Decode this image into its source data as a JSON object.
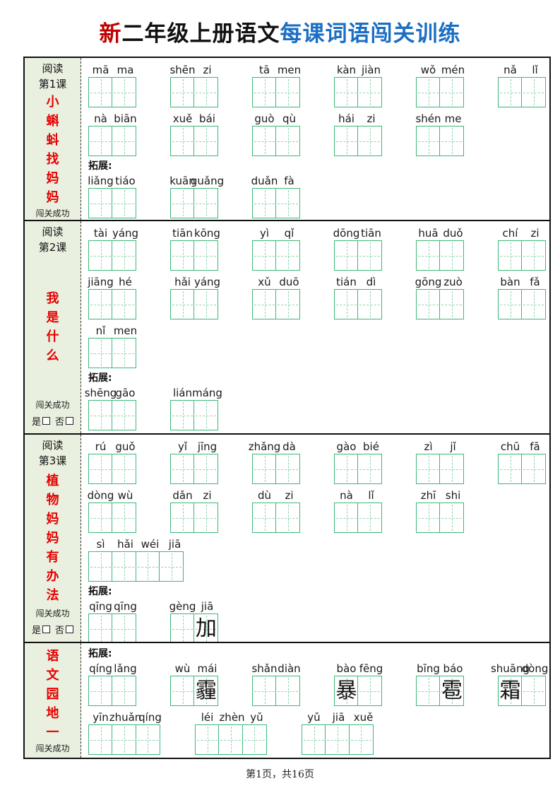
{
  "title": {
    "prefix": "新",
    "middle": "二年级上册语文",
    "suffix": "每课词语闯关训练"
  },
  "labels": {
    "expand": "拓展:",
    "success": "闯关成功",
    "yes": "是",
    "no": "否"
  },
  "colors": {
    "box_green": "#3cb878",
    "box_green_light": "#8fd4ae",
    "sidebar_bg": "#e9f0df",
    "title_red": "#c00000",
    "title_blue": "#1b6ec2",
    "lesson_red": "#e60000"
  },
  "sections": [
    {
      "sidebar": {
        "reading": "阅读",
        "lesson": "第1课",
        "title": "小蝌蚪找妈妈"
      },
      "blocks": [
        {
          "type": "words",
          "words": [
            {
              "pinyin": [
                "mā",
                "ma"
              ]
            },
            {
              "pinyin": [
                "shēn",
                "zi"
              ]
            },
            {
              "pinyin": [
                "tā",
                "men"
              ]
            },
            {
              "pinyin": [
                "kàn",
                "jiàn"
              ]
            },
            {
              "pinyin": [
                "wǒ",
                "mén"
              ]
            },
            {
              "pinyin": [
                "nǎ",
                "lǐ"
              ]
            }
          ]
        },
        {
          "type": "words",
          "words": [
            {
              "pinyin": [
                "nà",
                "biān"
              ]
            },
            {
              "pinyin": [
                "xuě",
                "bái"
              ]
            },
            {
              "pinyin": [
                "guò",
                "qù"
              ]
            },
            {
              "pinyin": [
                "hái",
                "zi"
              ]
            },
            {
              "pinyin": [
                "shén",
                "me"
              ]
            }
          ]
        },
        {
          "type": "expand"
        },
        {
          "type": "words",
          "words": [
            {
              "pinyin": [
                "liǎng",
                "tiáo"
              ]
            },
            {
              "pinyin": [
                "kuān",
                "guǎng"
              ]
            },
            {
              "pinyin": [
                "duǎn",
                "fà"
              ]
            }
          ]
        }
      ]
    },
    {
      "sidebar": {
        "reading": "阅读",
        "lesson": "第2课",
        "title": "我是什么"
      },
      "blocks": [
        {
          "type": "words",
          "words": [
            {
              "pinyin": [
                "tài",
                "yáng"
              ]
            },
            {
              "pinyin": [
                "tiān",
                "kōng"
              ]
            },
            {
              "pinyin": [
                "yì",
                "qǐ"
              ]
            },
            {
              "pinyin": [
                "dōng",
                "tiān"
              ]
            },
            {
              "pinyin": [
                "huā",
                "duǒ"
              ]
            },
            {
              "pinyin": [
                "chí",
                "zi"
              ]
            }
          ]
        },
        {
          "type": "words",
          "words": [
            {
              "pinyin": [
                "jiāng",
                "hé"
              ]
            },
            {
              "pinyin": [
                "hǎi",
                "yáng"
              ]
            },
            {
              "pinyin": [
                "xǔ",
                "duō"
              ]
            },
            {
              "pinyin": [
                "tián",
                "dì"
              ]
            },
            {
              "pinyin": [
                "gōng",
                "zuò"
              ]
            },
            {
              "pinyin": [
                "bàn",
                "fǎ"
              ]
            }
          ]
        },
        {
          "type": "words",
          "words": [
            {
              "pinyin": [
                "nǐ",
                "men"
              ]
            }
          ]
        },
        {
          "type": "expand"
        },
        {
          "type": "words",
          "words": [
            {
              "pinyin": [
                "shēng",
                "gāo"
              ]
            },
            {
              "pinyin": [
                "lián",
                "máng"
              ]
            }
          ]
        }
      ]
    },
    {
      "sidebar": {
        "reading": "阅读",
        "lesson": "第3课",
        "title": "植物妈妈有办法"
      },
      "blocks": [
        {
          "type": "words",
          "words": [
            {
              "pinyin": [
                "rú",
                "guǒ"
              ]
            },
            {
              "pinyin": [
                "yǐ",
                "jīng"
              ]
            },
            {
              "pinyin": [
                "zhǎng",
                "dà"
              ]
            },
            {
              "pinyin": [
                "gào",
                "bié"
              ]
            },
            {
              "pinyin": [
                "zì",
                "jǐ"
              ]
            },
            {
              "pinyin": [
                "chū",
                "fā"
              ]
            }
          ]
        },
        {
          "type": "words",
          "words": [
            {
              "pinyin": [
                "dòng",
                "wù"
              ]
            },
            {
              "pinyin": [
                "dǎn",
                "zi"
              ]
            },
            {
              "pinyin": [
                "dù",
                "zi"
              ]
            },
            {
              "pinyin": [
                "nà",
                "lǐ"
              ]
            },
            {
              "pinyin": [
                "zhī",
                "shi"
              ]
            }
          ]
        },
        {
          "type": "words",
          "words": [
            {
              "pinyin": [
                "sì",
                "hǎi",
                "wéi",
                "jiā"
              ]
            }
          ]
        },
        {
          "type": "expand"
        },
        {
          "type": "words",
          "words": [
            {
              "pinyin": [
                "qīng",
                "qīng"
              ]
            },
            {
              "pinyin": [
                "gèng",
                "jiā"
              ],
              "chars": [
                "",
                "加"
              ]
            }
          ]
        }
      ]
    },
    {
      "sidebar": {
        "title": "语文园地一"
      },
      "blocks": [
        {
          "type": "expand"
        },
        {
          "type": "words",
          "words": [
            {
              "pinyin": [
                "qíng",
                "lǎng"
              ]
            },
            {
              "pinyin": [
                "wù",
                "mái"
              ],
              "chars": [
                "",
                "霾"
              ]
            },
            {
              "pinyin": [
                "shǎn",
                "diàn"
              ]
            },
            {
              "pinyin": [
                "bào",
                "fēng"
              ],
              "chars": [
                "暴",
                ""
              ]
            },
            {
              "pinyin": [
                "bīng",
                "báo"
              ],
              "chars": [
                "",
                "雹"
              ]
            },
            {
              "pinyin": [
                "shuāng",
                "dòng"
              ],
              "chars": [
                "霜",
                ""
              ]
            }
          ]
        },
        {
          "type": "words",
          "words": [
            {
              "pinyin": [
                "yīn",
                "zhuǎn",
                "qíng"
              ]
            },
            {
              "pinyin": [
                "léi",
                "zhèn",
                "yǔ"
              ]
            },
            {
              "pinyin": [
                "yǔ",
                "jiā",
                "xuě"
              ]
            }
          ]
        }
      ]
    }
  ],
  "footer": {
    "page_text": "第1页，共16页"
  }
}
